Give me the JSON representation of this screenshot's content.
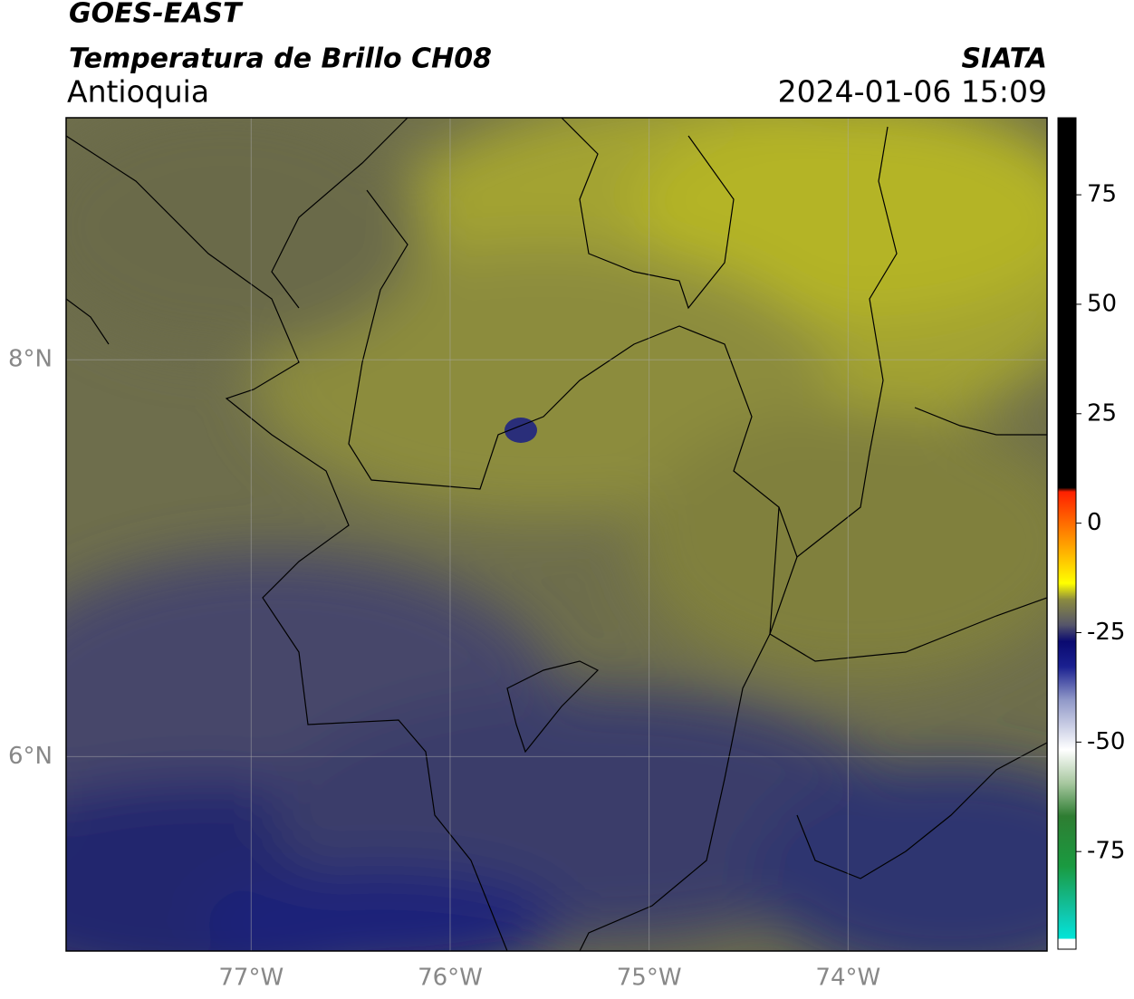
{
  "header": {
    "title": "GOES-EAST",
    "subtitle": "Temperatura de Brillo CH08",
    "organization": "SIATA",
    "region": "Antioquia",
    "timestamp": "2024-01-06 15:09"
  },
  "map": {
    "xlim": [
      -77.93,
      -73.0
    ],
    "ylim": [
      5.02,
      9.22
    ],
    "xticks": [
      {
        "value": -77,
        "label": "77°W"
      },
      {
        "value": -76,
        "label": "76°W"
      },
      {
        "value": -75,
        "label": "75°W"
      },
      {
        "value": -74,
        "label": "74°W"
      }
    ],
    "yticks": [
      {
        "value": 6,
        "label": "6°N"
      },
      {
        "value": 8,
        "label": "8°N"
      }
    ]
  },
  "colorbar": {
    "lim": [
      -97.3,
      92.6
    ],
    "ticks": [
      -75,
      -50,
      -25,
      0,
      25,
      50,
      75
    ]
  }
}
